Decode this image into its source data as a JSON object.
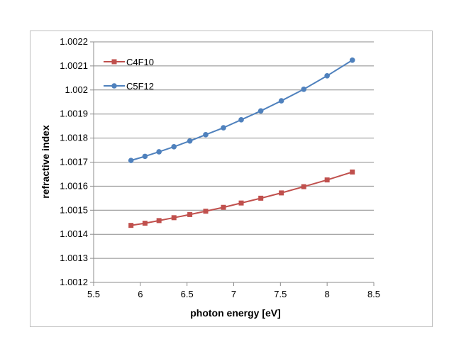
{
  "chart_data": {
    "type": "line",
    "title": "",
    "xlabel": "photon energy [eV]",
    "ylabel": "refractive index",
    "xlim": [
      5.5,
      8.5
    ],
    "ylim": [
      1.0012,
      1.0022
    ],
    "x_ticks": [
      "5.5",
      "6",
      "6.5",
      "7",
      "7.5",
      "8",
      "8.5"
    ],
    "y_ticks": [
      "1.0012",
      "1.0013",
      "1.0014",
      "1.0015",
      "1.0016",
      "1.0017",
      "1.0018",
      "1.0019",
      "1.002",
      "1.0021",
      "1.0022"
    ],
    "grid": "horizontal",
    "legend_position": "top-left",
    "series": [
      {
        "name": "C4F10",
        "color": "#c0504d",
        "marker": "square",
        "x": [
          5.9,
          6.05,
          6.2,
          6.36,
          6.53,
          6.7,
          6.89,
          7.08,
          7.29,
          7.51,
          7.75,
          8.0,
          8.27
        ],
        "y": [
          1.001437,
          1.001446,
          1.001457,
          1.001469,
          1.001482,
          1.001496,
          1.001512,
          1.00153,
          1.00155,
          1.001572,
          1.001598,
          1.001626,
          1.001659
        ]
      },
      {
        "name": "C5F12",
        "color": "#4f81bd",
        "marker": "circle",
        "x": [
          5.9,
          6.05,
          6.2,
          6.36,
          6.53,
          6.7,
          6.89,
          7.08,
          7.29,
          7.51,
          7.75,
          8.0,
          8.27
        ],
        "y": [
          1.001707,
          1.001724,
          1.001743,
          1.001764,
          1.001788,
          1.001814,
          1.001843,
          1.001876,
          1.001913,
          1.001955,
          1.002003,
          1.002059,
          1.002124
        ]
      }
    ]
  }
}
